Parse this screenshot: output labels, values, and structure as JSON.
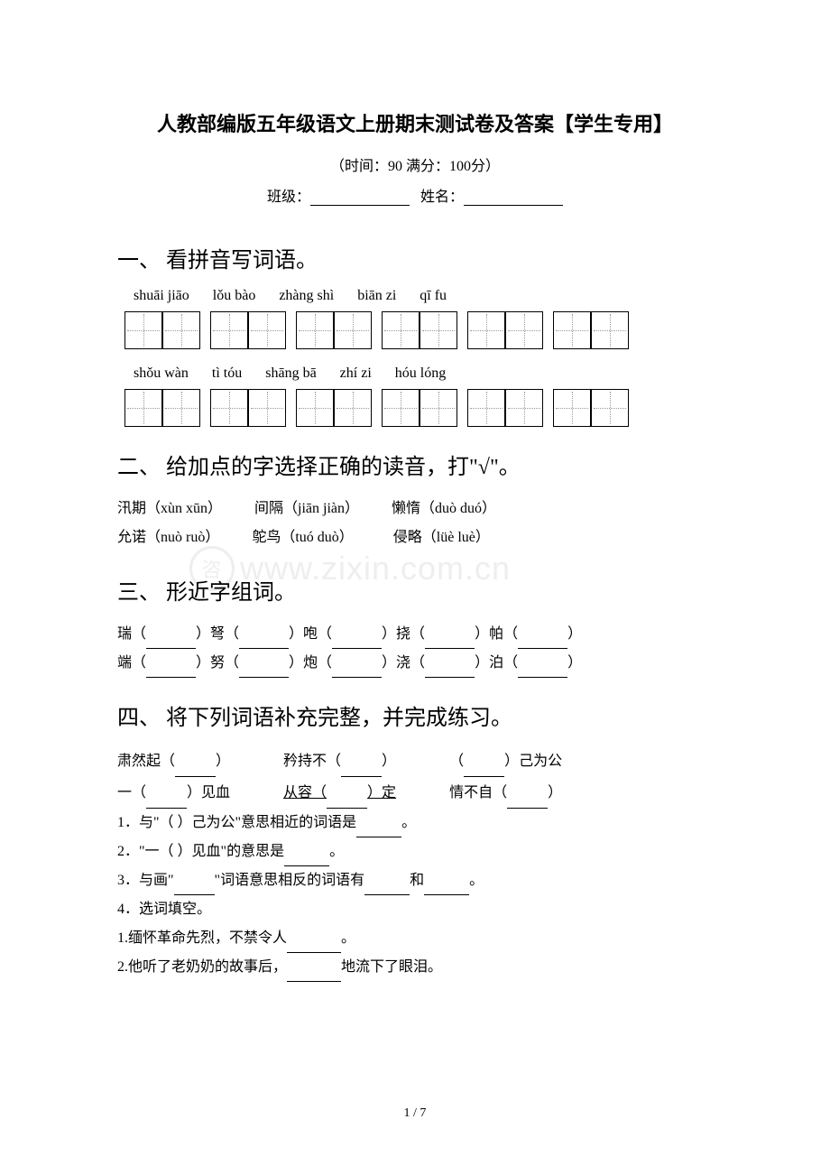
{
  "header": {
    "title": "人教部编版五年级语文上册期末测试卷及答案【学生专用】",
    "time_score": "（时间：90   满分：100分）",
    "class_label": "班级：",
    "name_label": "姓名："
  },
  "section1": {
    "heading": "一、 看拼音写词语。",
    "pinyin_row1": {
      "p1": "shuāi jiāo",
      "p2": "lǒu bào",
      "p3": "zhàng shì",
      "p4": "biān zi",
      "p5": "qī fu"
    },
    "pinyin_row2": {
      "p1": "shǒu wàn",
      "p2": "tì tóu",
      "p3": "shāng bā",
      "p4": "zhí zi",
      "p5": "hóu lóng"
    }
  },
  "section2": {
    "heading": "二、 给加点的字选择正确的读音，打\"√\"。",
    "line1": {
      "w1": "汛期（xùn xūn）",
      "w2": "间隔（jiān jiàn）",
      "w3": "懒惰（duò duó）"
    },
    "line2": {
      "w1": "允诺（nuò ruò）",
      "w2": "鸵鸟（tuó duò）",
      "w3": "侵略（lüè luè）"
    }
  },
  "section3": {
    "heading": "三、 形近字组词。",
    "line1": {
      "c1": "瑞（",
      "c2": "）弩（",
      "c3": "）咆（",
      "c4": "）挠（",
      "c5": "）帕（",
      "c6": "）"
    },
    "line2": {
      "c1": "端（",
      "c2": "）努（",
      "c3": "）炮（",
      "c4": "）浇（",
      "c5": "）泊（",
      "c6": "）"
    }
  },
  "section4": {
    "heading": "四、 将下列词语补充完整，并完成练习。",
    "row1": {
      "i1a": "肃然起（",
      "i1b": "）",
      "i2a": "矜持不（",
      "i2b": "）",
      "i3a": "（",
      "i3b": "）己为公"
    },
    "row2": {
      "i1a": "一（",
      "i1b": "）见血",
      "i2a": "从容（",
      "i2b": "）定",
      "i3a": "情不自（",
      "i3b": "）"
    },
    "q1": "1．与\"（   ）己为公\"意思相近的词语是",
    "q1_end": "。",
    "q2": "2．\"一（   ）见血\"的意思是",
    "q2_end": "。",
    "q3a": "3．与画\"",
    "q3b": "\"词语意思相反的词语有",
    "q3c": "和",
    "q3d": "。",
    "q4": "4．选词填空。",
    "q4_1": "1.缅怀革命先烈，不禁令人",
    "q4_1_end": "。",
    "q4_2": "2.他听了老奶奶的故事后，",
    "q4_2_end": "地流下了眼泪。"
  },
  "watermark": "www.zixin.com.cn",
  "page_number": "1 / 7"
}
